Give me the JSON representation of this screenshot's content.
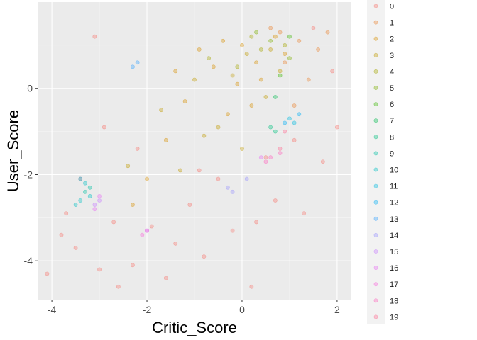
{
  "chart_data": {
    "type": "scatter",
    "xlabel": "Critic_Score",
    "ylabel": "User_Score",
    "xlim": [
      -4.3,
      2.3
    ],
    "ylim": [
      -4.9,
      2.0
    ],
    "x_ticks": [
      -4,
      -2,
      0,
      2
    ],
    "y_ticks": [
      -4,
      -2,
      0
    ],
    "grid": true,
    "legend_position": "right",
    "legend_title": "",
    "point_opacity": 0.35,
    "categories": [
      "0",
      "1",
      "2",
      "3",
      "4",
      "5",
      "6",
      "7",
      "8",
      "9",
      "10",
      "11",
      "12",
      "13",
      "14",
      "15",
      "16",
      "17",
      "18",
      "19"
    ],
    "colors": [
      "#F8766D",
      "#EA8331",
      "#D89000",
      "#C09B00",
      "#A3A500",
      "#7CAE00",
      "#39B600",
      "#00BB4E",
      "#00BF7D",
      "#00C1A3",
      "#00BFC4",
      "#00BAE0",
      "#00B0F6",
      "#35A2FF",
      "#9590FF",
      "#C77CFF",
      "#E76BF3",
      "#FA62DB",
      "#FF62BC",
      "#FF6C91"
    ],
    "series": [
      {
        "name": "0",
        "points": [
          [
            -4.1,
            -4.3
          ],
          [
            -3.8,
            -3.4
          ],
          [
            -3.5,
            -3.7
          ],
          [
            -3.0,
            -4.2
          ],
          [
            -3.1,
            1.2
          ],
          [
            -2.6,
            -4.6
          ],
          [
            -2.3,
            -4.1
          ],
          [
            -1.6,
            -4.4
          ],
          [
            -0.8,
            -3.9
          ],
          [
            0.2,
            -4.6
          ],
          [
            -0.2,
            -3.3
          ],
          [
            -3.4,
            -2.1
          ],
          [
            -2.9,
            -0.9
          ],
          [
            -2.2,
            -1.4
          ],
          [
            -1.9,
            -3.2
          ],
          [
            -1.1,
            -2.7
          ],
          [
            -0.5,
            -2.1
          ],
          [
            0.7,
            -2.6
          ],
          [
            1.3,
            -2.9
          ],
          [
            1.7,
            -1.7
          ],
          [
            2.0,
            -0.9
          ],
          [
            1.9,
            0.4
          ],
          [
            1.5,
            1.4
          ],
          [
            0.3,
            -3.1
          ],
          [
            -1.4,
            -3.6
          ],
          [
            -2.7,
            -3.1
          ],
          [
            -3.7,
            -2.9
          ],
          [
            1.1,
            -1.2
          ],
          [
            0.5,
            -1.6
          ],
          [
            -0.9,
            -1.9
          ]
        ]
      },
      {
        "name": "1",
        "points": [
          [
            1.2,
            1.1
          ],
          [
            0.8,
            1.3
          ],
          [
            1.6,
            0.9
          ],
          [
            1.4,
            0.2
          ],
          [
            0.9,
            0.6
          ],
          [
            1.8,
            1.3
          ],
          [
            1.1,
            -0.4
          ],
          [
            0.6,
            1.4
          ]
        ]
      },
      {
        "name": "2",
        "points": [
          [
            -1.2,
            -0.3
          ],
          [
            -0.6,
            0.5
          ],
          [
            0.0,
            1.0
          ],
          [
            0.4,
            0.2
          ],
          [
            -0.3,
            -0.6
          ],
          [
            0.9,
            0.8
          ],
          [
            -1.6,
            -1.2
          ],
          [
            -0.9,
            0.9
          ],
          [
            0.2,
            -0.4
          ],
          [
            0.7,
            1.2
          ],
          [
            -0.4,
            1.1
          ],
          [
            -2.0,
            -2.1
          ],
          [
            -2.3,
            -2.7
          ],
          [
            -1.4,
            0.4
          ],
          [
            0.3,
            0.6
          ],
          [
            -0.1,
            0.1
          ]
        ]
      },
      {
        "name": "3",
        "points": [
          [
            -0.8,
            -1.1
          ],
          [
            0.1,
            0.8
          ],
          [
            -1.7,
            -0.5
          ],
          [
            0.5,
            -0.2
          ],
          [
            -0.2,
            0.3
          ],
          [
            -1.0,
            0.2
          ],
          [
            0.8,
            0.4
          ],
          [
            -2.4,
            -1.8
          ],
          [
            -1.3,
            -1.9
          ],
          [
            0.0,
            -1.4
          ],
          [
            -0.5,
            -0.9
          ],
          [
            0.6,
            0.9
          ]
        ]
      },
      {
        "name": "4",
        "points": [
          [
            -0.7,
            0.7
          ],
          [
            0.2,
            1.2
          ],
          [
            0.9,
            1.0
          ],
          [
            -0.1,
            0.5
          ],
          [
            0.4,
            0.9
          ]
        ]
      },
      {
        "name": "5",
        "points": [
          [
            0.6,
            1.1
          ],
          [
            1.0,
            0.7
          ],
          [
            0.3,
            1.3
          ]
        ]
      },
      {
        "name": "6",
        "points": [
          [
            0.8,
            0.3
          ],
          [
            1.0,
            1.2
          ]
        ]
      },
      {
        "name": "7",
        "points": [
          [
            0.7,
            -0.2
          ]
        ]
      },
      {
        "name": "8",
        "points": [
          [
            0.6,
            -0.9
          ],
          [
            0.7,
            -1.0
          ]
        ]
      },
      {
        "name": "9",
        "points": [
          [
            -3.3,
            -2.4
          ],
          [
            -3.2,
            -2.3
          ]
        ]
      },
      {
        "name": "10",
        "points": [
          [
            -3.4,
            -2.6
          ],
          [
            -3.2,
            -2.5
          ],
          [
            -3.3,
            -2.2
          ],
          [
            -3.5,
            -2.7
          ]
        ]
      },
      {
        "name": "11",
        "points": [
          [
            -3.4,
            -2.1
          ],
          [
            1.0,
            -0.7
          ],
          [
            1.1,
            -0.8
          ]
        ]
      },
      {
        "name": "12",
        "points": [
          [
            0.9,
            -0.8
          ],
          [
            1.2,
            -0.6
          ]
        ]
      },
      {
        "name": "13",
        "points": [
          [
            -2.3,
            0.5
          ],
          [
            -2.2,
            0.6
          ]
        ]
      },
      {
        "name": "14",
        "points": [
          [
            -0.3,
            -2.3
          ],
          [
            -0.2,
            -2.4
          ],
          [
            0.1,
            -2.1
          ]
        ]
      },
      {
        "name": "15",
        "points": [
          [
            -3.1,
            -2.7
          ],
          [
            -3.0,
            -2.6
          ],
          [
            -2.0,
            -3.3
          ]
        ]
      },
      {
        "name": "16",
        "points": [
          [
            -3.1,
            -2.8
          ],
          [
            -3.0,
            -2.5
          ],
          [
            0.4,
            -1.6
          ]
        ]
      },
      {
        "name": "17",
        "points": [
          [
            -2.1,
            -3.4
          ],
          [
            -2.0,
            -3.3
          ]
        ]
      },
      {
        "name": "18",
        "points": [
          [
            0.5,
            -1.7
          ],
          [
            0.6,
            -1.6
          ],
          [
            0.8,
            -1.5
          ]
        ]
      },
      {
        "name": "19",
        "points": [
          [
            0.8,
            -1.4
          ],
          [
            0.9,
            -1.0
          ]
        ]
      }
    ]
  }
}
